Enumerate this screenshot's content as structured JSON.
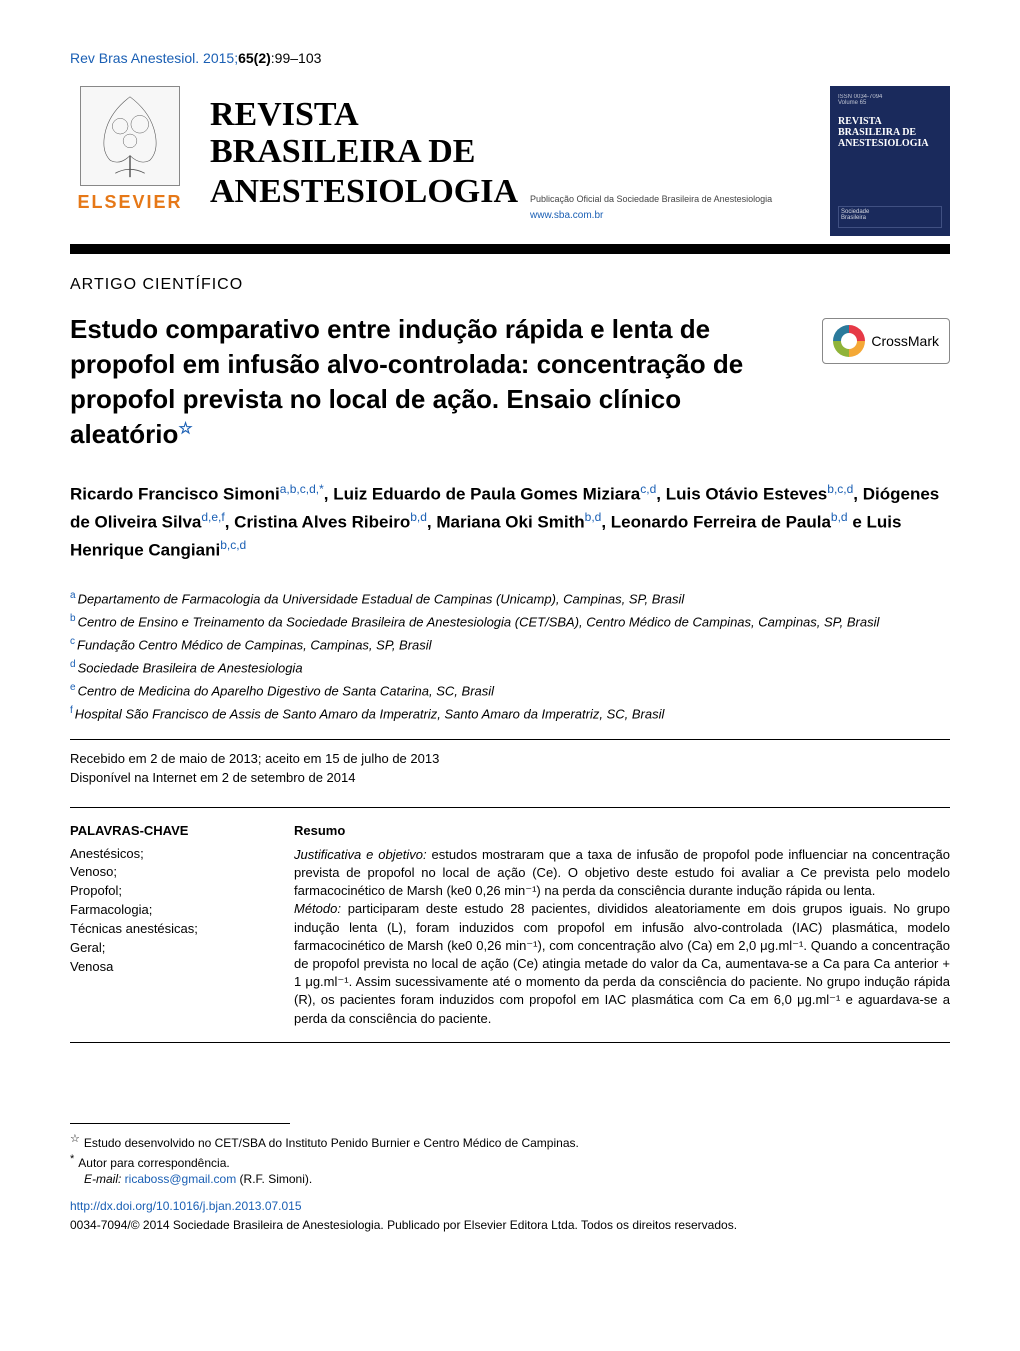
{
  "meta": {
    "citation_prefix": "Rev Bras Anestesiol. 2015;",
    "volume_issue": "65(2)",
    "pages": ":99–103"
  },
  "header": {
    "publisher_name": "ELSEVIER",
    "journal_title_line1": "REVISTA",
    "journal_title_line2": "BRASILEIRA DE",
    "journal_title_line3": "ANESTESIOLOGIA",
    "subtitle": "Publicação Oficial da Sociedade Brasileira de Anestesiologia",
    "website": "www.sba.com.br",
    "cover_title": "REVISTA BRASILEIRA DE ANESTESIOLOGIA"
  },
  "article": {
    "type": "ARTIGO CIENTÍFICO",
    "title": "Estudo comparativo entre indução rápida e lenta de propofol em infusão alvo-controlada: concentração de propofol prevista no local de ação. Ensaio clínico aleatório",
    "crossmark_label": "CrossMark"
  },
  "authors_html": "Ricardo Francisco Simoni<span class=\"sup\">a,b,c,d,*</span>, Luiz Eduardo de Paula Gomes Miziara<span class=\"sup\">c,d</span>, Luis Otávio Esteves<span class=\"sup\">b,c,d</span>, Diógenes de Oliveira Silva<span class=\"sup\">d,e,f</span>, Cristina Alves Ribeiro<span class=\"sup\">b,d</span>, Mariana Oki Smith<span class=\"sup\">b,d</span>, Leonardo Ferreira de Paula<span class=\"sup\">b,d</span> e Luis Henrique Cangiani<span class=\"sup\">b,c,d</span>",
  "affiliations": [
    {
      "sup": "a",
      "text": "Departamento de Farmacologia da Universidade Estadual de Campinas (Unicamp), Campinas, SP, Brasil"
    },
    {
      "sup": "b",
      "text": "Centro de Ensino e Treinamento da Sociedade Brasileira de Anestesiologia (CET/SBA), Centro Médico de Campinas, Campinas, SP, Brasil"
    },
    {
      "sup": "c",
      "text": "Fundação Centro Médico de Campinas, Campinas, SP, Brasil"
    },
    {
      "sup": "d",
      "text": "Sociedade Brasileira de Anestesiologia"
    },
    {
      "sup": "e",
      "text": "Centro de Medicina do Aparelho Digestivo de Santa Catarina, SC, Brasil"
    },
    {
      "sup": "f",
      "text": "Hospital São Francisco de Assis de Santo Amaro da Imperatriz, Santo Amaro da Imperatriz, SC, Brasil"
    }
  ],
  "dates": {
    "received_accepted": "Recebido em 2 de maio de 2013; aceito em 15 de julho de 2013",
    "online": "Disponível na Internet em 2 de setembro de 2014"
  },
  "keywords": {
    "heading": "PALAVRAS-CHAVE",
    "items": [
      "Anestésicos;",
      "Venoso;",
      "Propofol;",
      "Farmacologia;",
      "Técnicas anestésicas;",
      "Geral;",
      "Venosa"
    ]
  },
  "abstract": {
    "heading": "Resumo",
    "objective_label": "Justificativa e objetivo:",
    "objective_text": " estudos mostraram que a taxa de infusão de propofol pode influenciar na concentração prevista de propofol no local de ação (Ce). O objetivo deste estudo foi avaliar a Ce prevista pelo modelo farmacocinético de Marsh (ke0 0,26 min⁻¹) na perda da consciência durante indução rápida ou lenta.",
    "method_label": "Método:",
    "method_text": " participaram deste estudo 28 pacientes, divididos aleatoriamente em dois grupos iguais. No grupo indução lenta (L), foram induzidos com propofol em infusão alvo-controlada (IAC) plasmática, modelo farmacocinético de Marsh (ke0 0,26 min⁻¹), com concentração alvo (Ca) em 2,0 μg.ml⁻¹. Quando a concentração de propofol prevista no local de ação (Ce) atingia metade do valor da Ca, aumentava-se a Ca para Ca anterior + 1 μg.ml⁻¹. Assim sucessivamente até o momento da perda da consciência do paciente. No grupo indução rápida (R), os pacientes foram induzidos com propofol em IAC plasmática com Ca em 6,0 μg.ml⁻¹ e aguardava-se a perda da consciência do paciente."
  },
  "footer": {
    "study_note": "Estudo desenvolvido no CET/SBA do Instituto Penido Burnier e Centro Médico de Campinas.",
    "corresponding": "Autor para correspondência.",
    "email_label": "E-mail: ",
    "email": "ricaboss@gmail.com",
    "email_suffix": " (R.F. Simoni).",
    "doi": "http://dx.doi.org/10.1016/j.bjan.2013.07.015",
    "copyright": "0034-7094/© 2014 Sociedade Brasileira de Anestesiologia. Publicado por Elsevier Editora Ltda. Todos os direitos reservados."
  },
  "colors": {
    "link": "#1a5fb4",
    "elsevier_orange": "#e67817",
    "cover_bg": "#1a2a5c"
  }
}
